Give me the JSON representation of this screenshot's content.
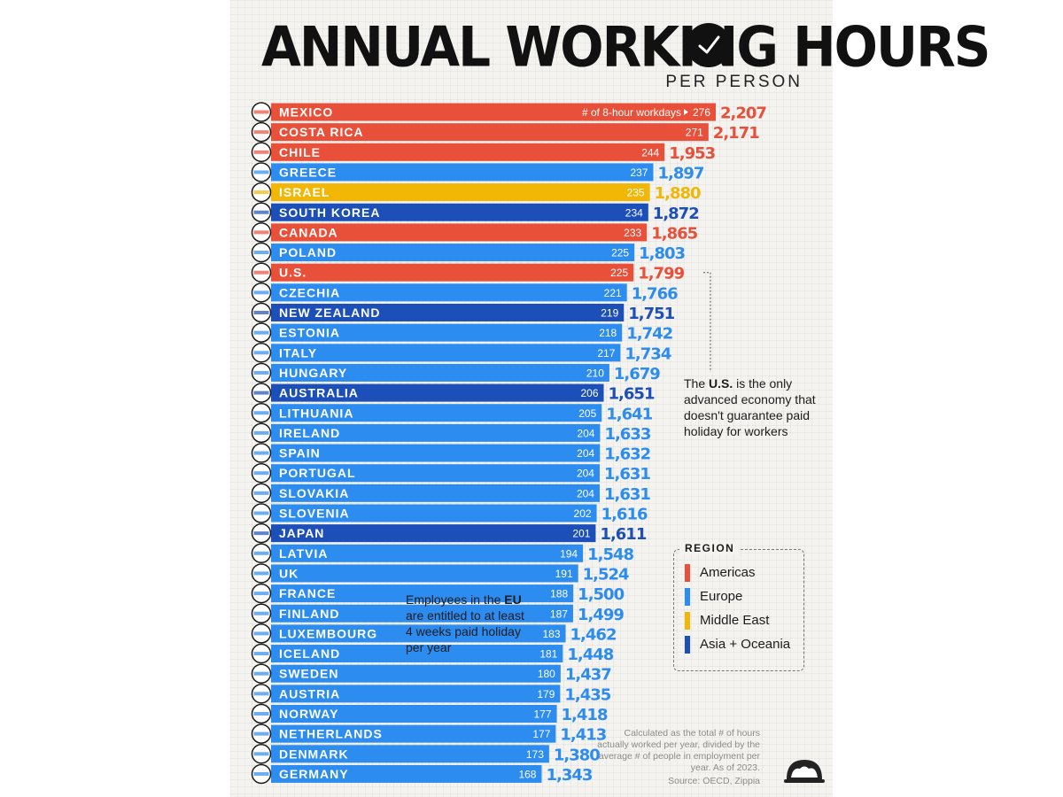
{
  "title": "ANNUAL WORKING HOURS",
  "subtitle": "PER PERSON",
  "workdays_label": "# of 8-hour workdays",
  "regions": {
    "Americas": "#e8503a",
    "Europe": "#2d8cf0",
    "Middle East": "#f2b705",
    "Asia + Oceania": "#1c4fb8"
  },
  "legend": {
    "title": "REGION",
    "items": [
      {
        "label": "Americas",
        "color": "#e8503a"
      },
      {
        "label": "Europe",
        "color": "#2d8cf0"
      },
      {
        "label": "Middle East",
        "color": "#f2b705"
      },
      {
        "label": "Asia + Oceania",
        "color": "#1c4fb8"
      }
    ]
  },
  "annotations": {
    "us_note": {
      "pre": "The ",
      "bold": "U.S.",
      "post": " is the only advanced economy that doesn't guarantee paid holiday for workers"
    },
    "eu_note": {
      "pre": "Employees in the ",
      "bold": "EU",
      "post": " are entitled to at least 4 weeks paid holiday per year"
    }
  },
  "footnote": "Calculated as the total # of hours actually worked per year, divided by the average # of people in employment per year. As of 2023.",
  "source": "Source: OECD, Zippia",
  "chart_data": {
    "type": "bar",
    "orientation": "horizontal",
    "title": "ANNUAL WORKING HOURS",
    "subtitle": "PER PERSON",
    "series": [
      {
        "name": "Annual working hours",
        "field": "hours"
      },
      {
        "name": "# of 8-hour workdays",
        "field": "workdays"
      }
    ],
    "rows": [
      {
        "country": "MEXICO",
        "workdays": 276,
        "hours": 2207,
        "hours_label": "2,207",
        "region": "Americas"
      },
      {
        "country": "COSTA RICA",
        "workdays": 271,
        "hours": 2171,
        "hours_label": "2,171",
        "region": "Americas"
      },
      {
        "country": "CHILE",
        "workdays": 244,
        "hours": 1953,
        "hours_label": "1,953",
        "region": "Americas"
      },
      {
        "country": "GREECE",
        "workdays": 237,
        "hours": 1897,
        "hours_label": "1,897",
        "region": "Europe"
      },
      {
        "country": "ISRAEL",
        "workdays": 235,
        "hours": 1880,
        "hours_label": "1,880",
        "region": "Middle East"
      },
      {
        "country": "SOUTH KOREA",
        "workdays": 234,
        "hours": 1872,
        "hours_label": "1,872",
        "region": "Asia + Oceania"
      },
      {
        "country": "CANADA",
        "workdays": 233,
        "hours": 1865,
        "hours_label": "1,865",
        "region": "Americas"
      },
      {
        "country": "POLAND",
        "workdays": 225,
        "hours": 1803,
        "hours_label": "1,803",
        "region": "Europe"
      },
      {
        "country": "U.S.",
        "workdays": 225,
        "hours": 1799,
        "hours_label": "1,799",
        "region": "Americas"
      },
      {
        "country": "CZECHIA",
        "workdays": 221,
        "hours": 1766,
        "hours_label": "1,766",
        "region": "Europe"
      },
      {
        "country": "NEW ZEALAND",
        "workdays": 219,
        "hours": 1751,
        "hours_label": "1,751",
        "region": "Asia + Oceania"
      },
      {
        "country": "ESTONIA",
        "workdays": 218,
        "hours": 1742,
        "hours_label": "1,742",
        "region": "Europe"
      },
      {
        "country": "ITALY",
        "workdays": 217,
        "hours": 1734,
        "hours_label": "1,734",
        "region": "Europe"
      },
      {
        "country": "HUNGARY",
        "workdays": 210,
        "hours": 1679,
        "hours_label": "1,679",
        "region": "Europe"
      },
      {
        "country": "AUSTRALIA",
        "workdays": 206,
        "hours": 1651,
        "hours_label": "1,651",
        "region": "Asia + Oceania"
      },
      {
        "country": "LITHUANIA",
        "workdays": 205,
        "hours": 1641,
        "hours_label": "1,641",
        "region": "Europe"
      },
      {
        "country": "IRELAND",
        "workdays": 204,
        "hours": 1633,
        "hours_label": "1,633",
        "region": "Europe"
      },
      {
        "country": "SPAIN",
        "workdays": 204,
        "hours": 1632,
        "hours_label": "1,632",
        "region": "Europe"
      },
      {
        "country": "PORTUGAL",
        "workdays": 204,
        "hours": 1631,
        "hours_label": "1,631",
        "region": "Europe"
      },
      {
        "country": "SLOVAKIA",
        "workdays": 204,
        "hours": 1631,
        "hours_label": "1,631",
        "region": "Europe"
      },
      {
        "country": "SLOVENIA",
        "workdays": 202,
        "hours": 1616,
        "hours_label": "1,616",
        "region": "Europe"
      },
      {
        "country": "JAPAN",
        "workdays": 201,
        "hours": 1611,
        "hours_label": "1,611",
        "region": "Asia + Oceania"
      },
      {
        "country": "LATVIA",
        "workdays": 194,
        "hours": 1548,
        "hours_label": "1,548",
        "region": "Europe"
      },
      {
        "country": "UK",
        "workdays": 191,
        "hours": 1524,
        "hours_label": "1,524",
        "region": "Europe"
      },
      {
        "country": "FRANCE",
        "workdays": 188,
        "hours": 1500,
        "hours_label": "1,500",
        "region": "Europe"
      },
      {
        "country": "FINLAND",
        "workdays": 187,
        "hours": 1499,
        "hours_label": "1,499",
        "region": "Europe"
      },
      {
        "country": "LUXEMBOURG",
        "workdays": 183,
        "hours": 1462,
        "hours_label": "1,462",
        "region": "Europe"
      },
      {
        "country": "ICELAND",
        "workdays": 181,
        "hours": 1448,
        "hours_label": "1,448",
        "region": "Europe"
      },
      {
        "country": "SWEDEN",
        "workdays": 180,
        "hours": 1437,
        "hours_label": "1,437",
        "region": "Europe"
      },
      {
        "country": "AUSTRIA",
        "workdays": 179,
        "hours": 1435,
        "hours_label": "1,435",
        "region": "Europe"
      },
      {
        "country": "NORWAY",
        "workdays": 177,
        "hours": 1418,
        "hours_label": "1,418",
        "region": "Europe"
      },
      {
        "country": "NETHERLANDS",
        "workdays": 177,
        "hours": 1413,
        "hours_label": "1,413",
        "region": "Europe"
      },
      {
        "country": "DENMARK",
        "workdays": 173,
        "hours": 1380,
        "hours_label": "1,380",
        "region": "Europe"
      },
      {
        "country": "GERMANY",
        "workdays": 168,
        "hours": 1343,
        "hours_label": "1,343",
        "region": "Europe"
      }
    ]
  }
}
